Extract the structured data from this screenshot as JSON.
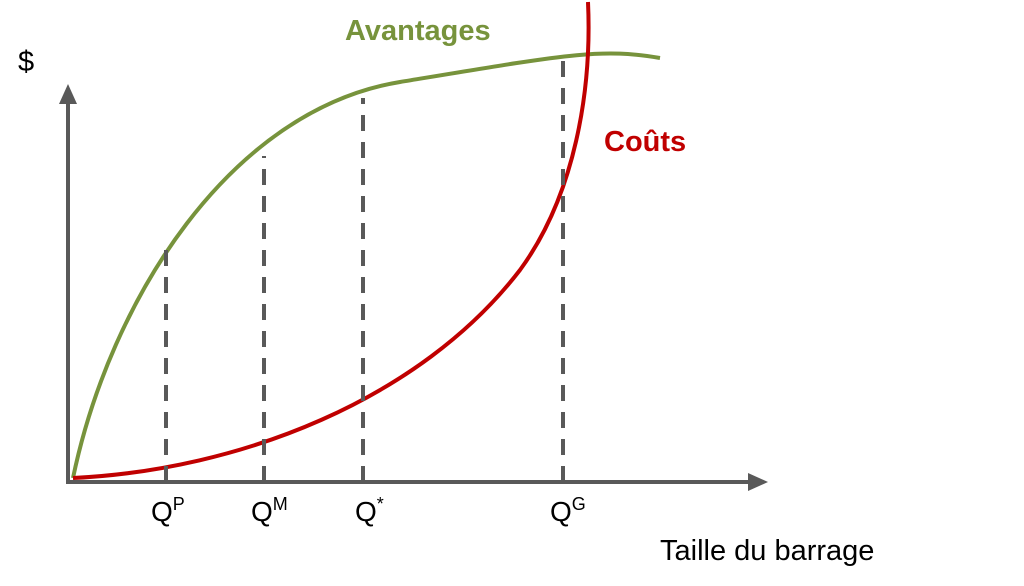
{
  "axes": {
    "y_label": "$",
    "x_label": "Taille du barrage"
  },
  "curves": {
    "benefits": {
      "label": "Avantages",
      "color": "#77933c"
    },
    "costs": {
      "label": "Coûts",
      "color": "#c00000"
    }
  },
  "quantities": [
    {
      "base": "Q",
      "sup": "P"
    },
    {
      "base": "Q",
      "sup": "M"
    },
    {
      "base": "Q",
      "sup": "*"
    },
    {
      "base": "Q",
      "sup": "G"
    }
  ]
}
